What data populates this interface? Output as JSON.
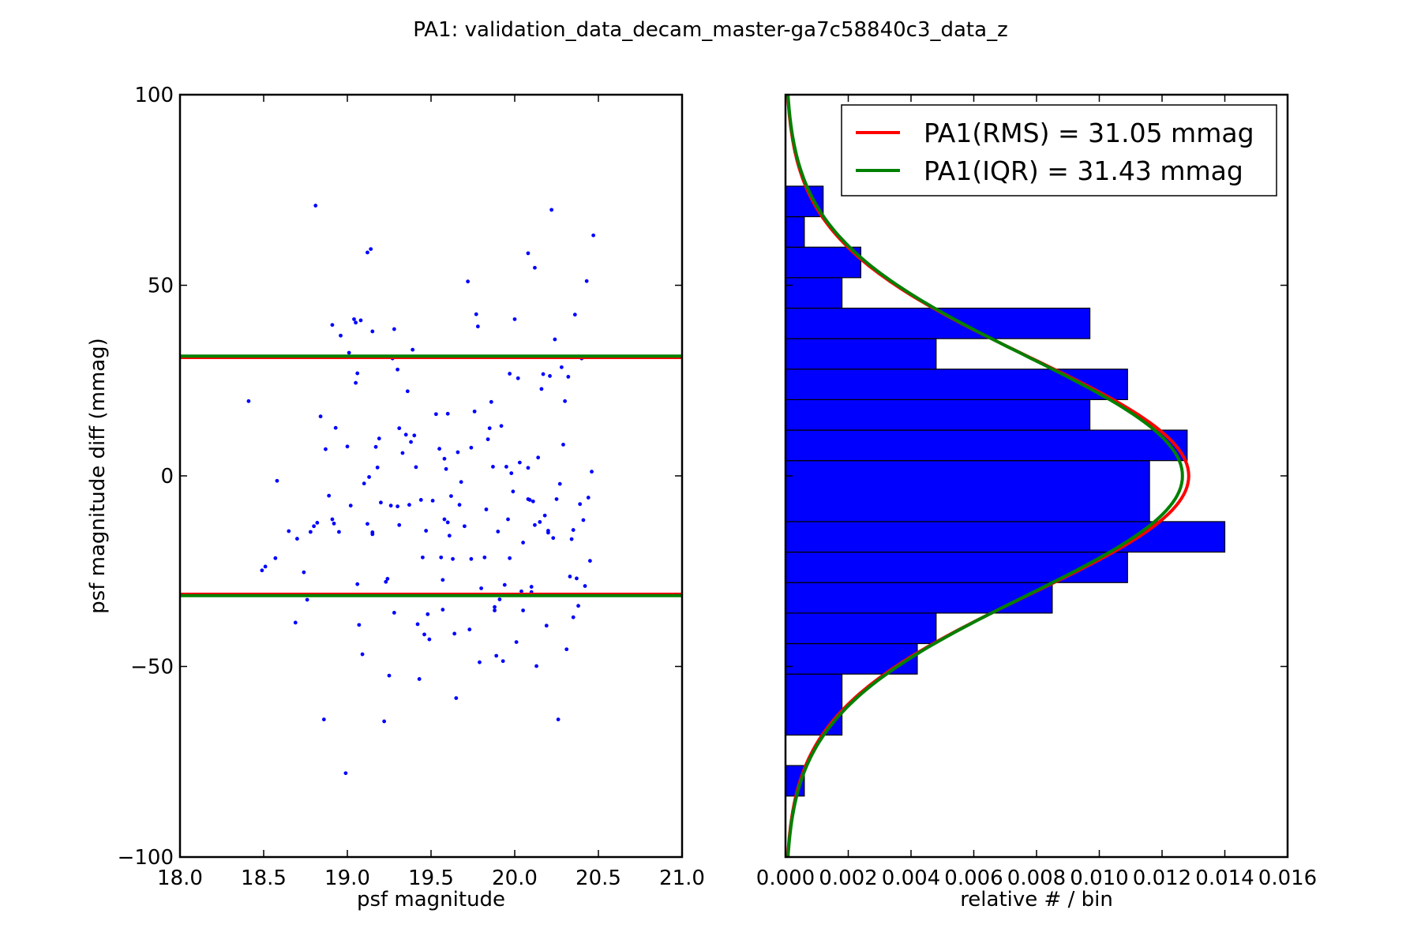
{
  "figure": {
    "title": "PA1: validation_data_decam_master-ga7c58840c3_data_z"
  },
  "colors": {
    "rms": "#ff0000",
    "iqr": "#008000",
    "points": "#0000ff",
    "hist_fill": "#0000ff",
    "hist_edge": "#000000"
  },
  "chart_data": [
    {
      "type": "scatter",
      "xlabel": "psf magnitude",
      "ylabel": "psf magnitude diff (mmag)",
      "xlim": [
        18.0,
        21.0
      ],
      "ylim": [
        -100,
        100
      ],
      "xticks": [
        "18.0",
        "18.5",
        "19.0",
        "19.5",
        "20.0",
        "20.5",
        "21.0"
      ],
      "yticks": [
        "100",
        "50",
        "0",
        "−50",
        "−100"
      ],
      "grid": false,
      "hlines": [
        {
          "name": "PA1(RMS)",
          "y": [
            31.05,
            -31.05
          ],
          "color": "#ff0000"
        },
        {
          "name": "PA1(IQR)",
          "y": [
            31.43,
            -31.43
          ],
          "color": "#008000"
        }
      ],
      "points": [
        [
          18.41,
          19.6
        ],
        [
          18.49,
          -24.8
        ],
        [
          18.51,
          -23.8
        ],
        [
          18.57,
          -21.6
        ],
        [
          18.58,
          -1.3
        ],
        [
          18.65,
          -14.5
        ],
        [
          18.69,
          -38.5
        ],
        [
          18.7,
          -16.5
        ],
        [
          18.74,
          -25.3
        ],
        [
          18.76,
          -32.5
        ],
        [
          18.78,
          -14.7
        ],
        [
          18.8,
          -13.2
        ],
        [
          18.81,
          70.9
        ],
        [
          18.82,
          -12.3
        ],
        [
          18.84,
          15.6
        ],
        [
          18.86,
          -63.9
        ],
        [
          18.87,
          7
        ],
        [
          18.89,
          -5.2
        ],
        [
          18.91,
          39.6
        ],
        [
          18.91,
          -11.4
        ],
        [
          18.92,
          -12.5
        ],
        [
          18.93,
          12.6
        ],
        [
          18.95,
          -14.7
        ],
        [
          18.96,
          36.8
        ],
        [
          18.99,
          -78
        ],
        [
          19,
          7.7
        ],
        [
          19.01,
          32.3
        ],
        [
          19.02,
          -7.8
        ],
        [
          19.04,
          41.1
        ],
        [
          19.05,
          24.4
        ],
        [
          19.05,
          40.2
        ],
        [
          19.06,
          26.9
        ],
        [
          19.06,
          -28.4
        ],
        [
          19.07,
          -39.1
        ],
        [
          19.08,
          40.8
        ],
        [
          19.09,
          -46.8
        ],
        [
          19.1,
          -2
        ],
        [
          19.12,
          -12.6
        ],
        [
          19.12,
          58.6
        ],
        [
          19.13,
          -0.3
        ],
        [
          19.14,
          59.5
        ],
        [
          19.15,
          -14.8
        ],
        [
          19.15,
          -15.3
        ],
        [
          19.15,
          37.9
        ],
        [
          19.17,
          7.6
        ],
        [
          19.18,
          2.2
        ],
        [
          19.19,
          9.8
        ],
        [
          19.2,
          -7
        ],
        [
          19.22,
          -64.4
        ],
        [
          19.23,
          -27.8
        ],
        [
          19.24,
          -27
        ],
        [
          19.25,
          -52.4
        ],
        [
          19.26,
          -7.8
        ],
        [
          19.27,
          30.8
        ],
        [
          19.28,
          38.5
        ],
        [
          19.28,
          -35.9
        ],
        [
          19.3,
          -8
        ],
        [
          19.3,
          27.9
        ],
        [
          19.31,
          12.5
        ],
        [
          19.31,
          -12.9
        ],
        [
          19.33,
          6
        ],
        [
          19.35,
          10.8
        ],
        [
          19.36,
          22.2
        ],
        [
          19.37,
          -7.6
        ],
        [
          19.38,
          8.9
        ],
        [
          19.39,
          33.1
        ],
        [
          19.4,
          10.6
        ],
        [
          19.41,
          2.3
        ],
        [
          19.42,
          -38.9
        ],
        [
          19.43,
          -53.3
        ],
        [
          19.44,
          -6.3
        ],
        [
          19.45,
          -21.4
        ],
        [
          19.46,
          -41.6
        ],
        [
          19.47,
          -14.4
        ],
        [
          19.48,
          -36.3
        ],
        [
          19.49,
          -42.9
        ],
        [
          19.51,
          -6.5
        ],
        [
          19.53,
          16.2
        ],
        [
          19.55,
          7.1
        ],
        [
          19.56,
          -21.4
        ],
        [
          19.57,
          -27.3
        ],
        [
          19.57,
          -35.1
        ],
        [
          19.58,
          4.5
        ],
        [
          19.58,
          -11.4
        ],
        [
          19.59,
          1.8
        ],
        [
          19.6,
          -12.2
        ],
        [
          19.6,
          16.3
        ],
        [
          19.61,
          -15.7
        ],
        [
          19.62,
          -5.3
        ],
        [
          19.63,
          -21.8
        ],
        [
          19.64,
          -41.4
        ],
        [
          19.65,
          -58.3
        ],
        [
          19.66,
          6.2
        ],
        [
          19.67,
          -7.6
        ],
        [
          19.68,
          -1.6
        ],
        [
          19.7,
          -13.2
        ],
        [
          19.72,
          51
        ],
        [
          19.73,
          -40.3
        ],
        [
          19.74,
          7.4
        ],
        [
          19.74,
          -21.8
        ],
        [
          19.76,
          16.9
        ],
        [
          19.77,
          42.4
        ],
        [
          19.78,
          39.2
        ],
        [
          19.79,
          -48.9
        ],
        [
          19.8,
          -29.5
        ],
        [
          19.82,
          -21.4
        ],
        [
          19.83,
          -8.8
        ],
        [
          19.84,
          9.6
        ],
        [
          19.85,
          12.5
        ],
        [
          19.86,
          19.4
        ],
        [
          19.87,
          2.4
        ],
        [
          19.88,
          -34.4
        ],
        [
          19.88,
          -35.3
        ],
        [
          19.89,
          -47.2
        ],
        [
          19.9,
          -14.6
        ],
        [
          19.91,
          -32.4
        ],
        [
          19.92,
          13.1
        ],
        [
          19.93,
          -48.6
        ],
        [
          19.94,
          -28.6
        ],
        [
          19.95,
          2.4
        ],
        [
          19.96,
          -11.4
        ],
        [
          19.97,
          26.8
        ],
        [
          19.98,
          0.7
        ],
        [
          19.99,
          -4.1
        ],
        [
          20,
          41.1
        ],
        [
          20.01,
          -43.6
        ],
        [
          20.02,
          25.6
        ],
        [
          20.03,
          3.5
        ],
        [
          20.04,
          -30.3
        ],
        [
          20.05,
          -17.5
        ],
        [
          20.07,
          -31.3
        ],
        [
          20.08,
          2.1
        ],
        [
          20.08,
          58.4
        ],
        [
          20.09,
          -6.3
        ],
        [
          20.1,
          -29.1
        ],
        [
          20.11,
          -6.7
        ],
        [
          20.12,
          54.6
        ],
        [
          20.13,
          -49.9
        ],
        [
          20.14,
          4.8
        ],
        [
          20.15,
          -12.1
        ],
        [
          20.16,
          22.8
        ],
        [
          20.17,
          26.7
        ],
        [
          20.18,
          -10.4
        ],
        [
          20.19,
          -39.3
        ],
        [
          20.2,
          -14.4
        ],
        [
          20.21,
          26.2
        ],
        [
          20.22,
          69.8
        ],
        [
          20.23,
          -16.3
        ],
        [
          20.24,
          35.8
        ],
        [
          20.25,
          -6.1
        ],
        [
          20.26,
          -63.9
        ],
        [
          20.27,
          -2.1
        ],
        [
          20.28,
          28.5
        ],
        [
          20.29,
          8.2
        ],
        [
          20.3,
          19.6
        ],
        [
          20.31,
          -45.5
        ],
        [
          20.32,
          26
        ],
        [
          20.33,
          -26.4
        ],
        [
          20.34,
          -16.6
        ],
        [
          20.35,
          -14.2
        ],
        [
          20.36,
          42.3
        ],
        [
          20.37,
          -26.9
        ],
        [
          20.38,
          -34.1
        ],
        [
          20.39,
          -7.4
        ],
        [
          20.4,
          30.8
        ],
        [
          20.41,
          -11.6
        ],
        [
          20.42,
          -28.9
        ],
        [
          20.43,
          51.1
        ],
        [
          20.44,
          -5.7
        ],
        [
          20.45,
          -22.3
        ],
        [
          20.46,
          1.1
        ],
        [
          20.47,
          63.1
        ],
        [
          20.08,
          -6.1
        ],
        [
          20.2,
          -14.9
        ],
        [
          20.1,
          -30.5
        ],
        [
          20.35,
          -37.1
        ],
        [
          20.05,
          -35.3
        ],
        [
          20.12,
          -12.9
        ],
        [
          19.97,
          -21.6
        ]
      ]
    },
    {
      "type": "bar",
      "orientation": "horizontal",
      "xlabel": "relative # / bin",
      "xlim": [
        0.0,
        0.016
      ],
      "ylim": [
        -100,
        100
      ],
      "xticks": [
        "0.000",
        "0.002",
        "0.004",
        "0.006",
        "0.008",
        "0.010",
        "0.012",
        "0.014",
        "0.016"
      ],
      "grid": false,
      "bin_width": 8,
      "bins": [
        {
          "lo": -84,
          "hi": -76,
          "value": 0.0006
        },
        {
          "lo": -76,
          "hi": -68,
          "value": 0
        },
        {
          "lo": -68,
          "hi": -52,
          "value": 0.0018
        },
        {
          "lo": -52,
          "hi": -44,
          "value": 0.0042
        },
        {
          "lo": -44,
          "hi": -36,
          "value": 0.0048
        },
        {
          "lo": -36,
          "hi": -28,
          "value": 0.0085
        },
        {
          "lo": -28,
          "hi": -20,
          "value": 0.0109
        },
        {
          "lo": -20,
          "hi": -12,
          "value": 0.014
        },
        {
          "lo": -12,
          "hi": 4,
          "value": 0.0116
        },
        {
          "lo": 4,
          "hi": 12,
          "value": 0.0128
        },
        {
          "lo": 12,
          "hi": 20,
          "value": 0.0097
        },
        {
          "lo": 20,
          "hi": 28,
          "value": 0.0109
        },
        {
          "lo": 28,
          "hi": 36,
          "value": 0.0048
        },
        {
          "lo": 36,
          "hi": 44,
          "value": 0.0097
        },
        {
          "lo": 44,
          "hi": 52,
          "value": 0.0018
        },
        {
          "lo": 52,
          "hi": 60,
          "value": 0.0024
        },
        {
          "lo": 60,
          "hi": 68,
          "value": 0.0006
        },
        {
          "lo": 68,
          "hi": 76,
          "value": 0.0012
        }
      ],
      "curves": [
        {
          "name": "PA1(RMS) = 31.05 mmag",
          "sigma": 31.05,
          "peak": 0.01285,
          "color": "#ff0000"
        },
        {
          "name": "PA1(IQR) = 31.43 mmag",
          "sigma": 31.43,
          "peak": 0.01265,
          "color": "#008000"
        }
      ],
      "legend": "top-right"
    }
  ]
}
